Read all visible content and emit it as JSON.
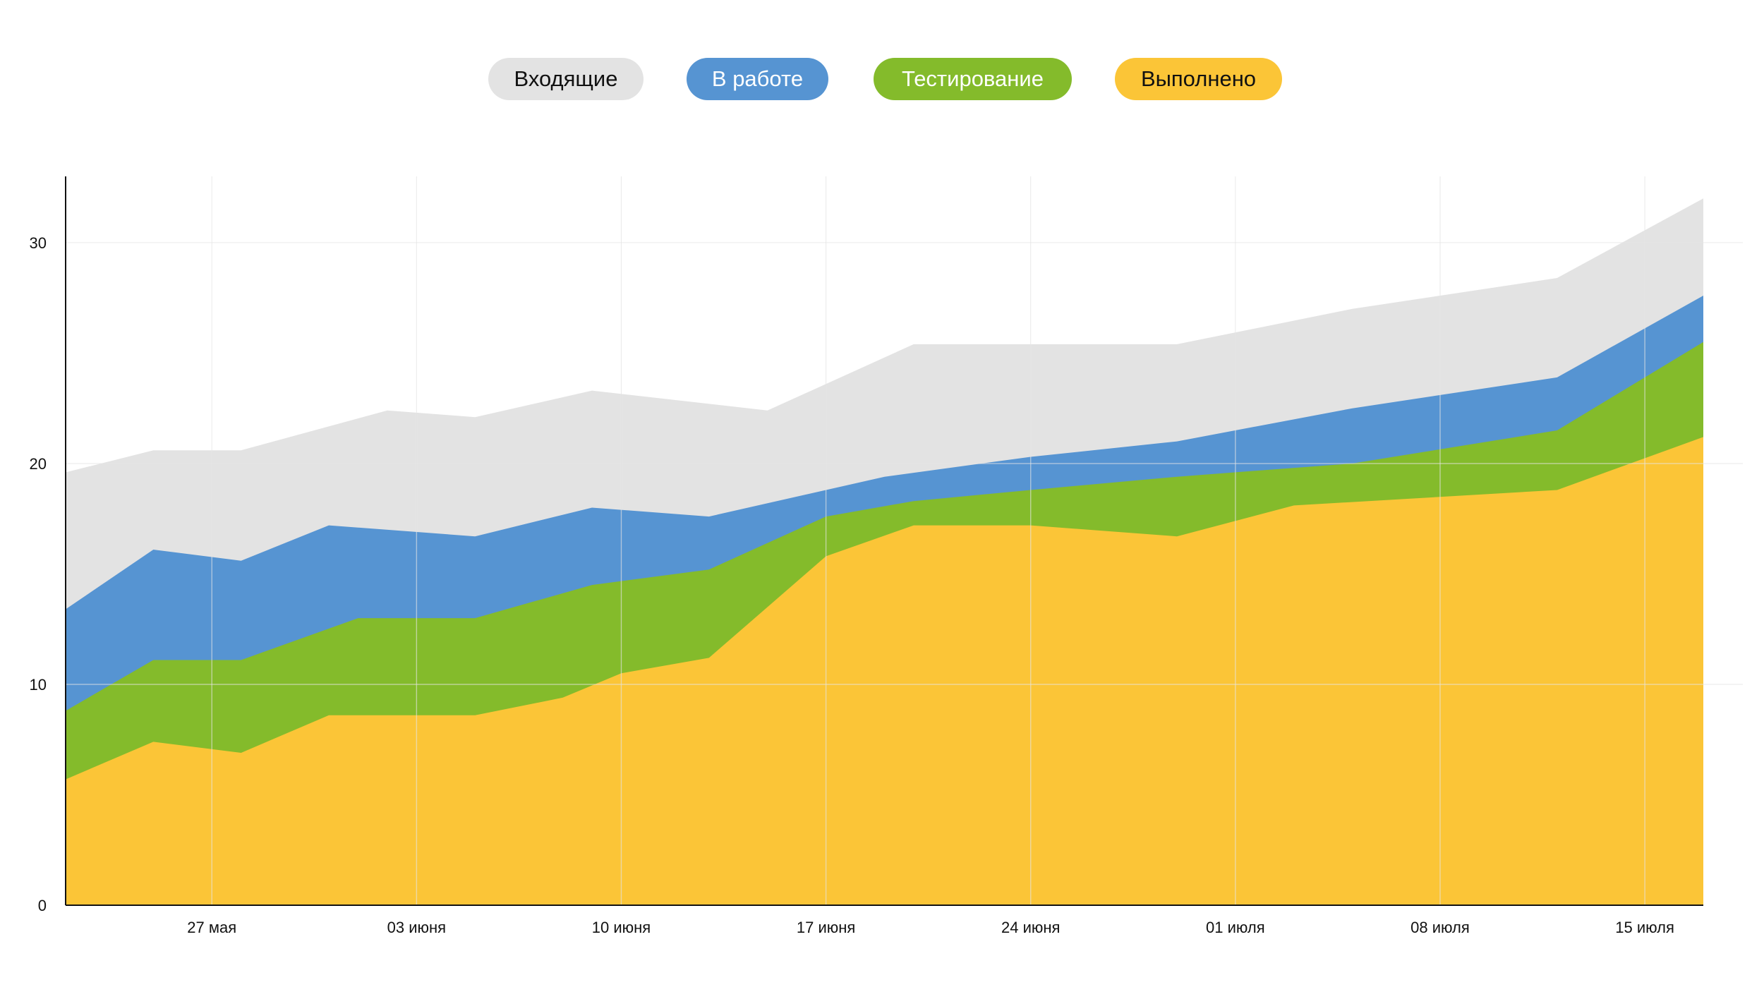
{
  "legend": [
    {
      "label": "Входящие",
      "bg": "#e3e3e3",
      "color": "#111111"
    },
    {
      "label": "В работе",
      "bg": "#5694d2",
      "color": "#ffffff"
    },
    {
      "label": "Тестирование",
      "bg": "#84bb2b",
      "color": "#ffffff"
    },
    {
      "label": "Выполнено",
      "bg": "#fbc537",
      "color": "#111111"
    }
  ],
  "chart_data": {
    "type": "area",
    "stacked": false,
    "title": "",
    "xlabel": "",
    "ylabel": "",
    "ylim": [
      0,
      33
    ],
    "yticks": [
      0,
      10,
      20,
      30
    ],
    "x_range": [
      "2024-05-22",
      "2024-07-17"
    ],
    "x_ticks": [
      {
        "date": "2024-05-27",
        "label": "27 мая"
      },
      {
        "date": "2024-06-03",
        "label": "03 июня"
      },
      {
        "date": "2024-06-10",
        "label": "10 июня"
      },
      {
        "date": "2024-06-17",
        "label": "17 июня"
      },
      {
        "date": "2024-06-24",
        "label": "24 июня"
      },
      {
        "date": "2024-07-01",
        "label": "01 июля"
      },
      {
        "date": "2024-07-08",
        "label": "08 июля"
      },
      {
        "date": "2024-07-15",
        "label": "15 июля"
      }
    ],
    "grid": true,
    "legend_position": "top-center",
    "series": [
      {
        "name": "Входящие",
        "color": "#e3e3e3",
        "points": [
          [
            "2024-05-22",
            19.6
          ],
          [
            "2024-05-25",
            20.6
          ],
          [
            "2024-05-28",
            20.6
          ],
          [
            "2024-06-02",
            22.4
          ],
          [
            "2024-06-05",
            22.1
          ],
          [
            "2024-06-09",
            23.3
          ],
          [
            "2024-06-15",
            22.4
          ],
          [
            "2024-06-20",
            25.4
          ],
          [
            "2024-06-29",
            25.4
          ],
          [
            "2024-07-05",
            27.0
          ],
          [
            "2024-07-12",
            28.4
          ],
          [
            "2024-07-17",
            32.0
          ]
        ]
      },
      {
        "name": "В работе",
        "color": "#5694d2",
        "points": [
          [
            "2024-05-22",
            13.4
          ],
          [
            "2024-05-25",
            16.1
          ],
          [
            "2024-05-28",
            15.6
          ],
          [
            "2024-05-31",
            17.2
          ],
          [
            "2024-06-05",
            16.7
          ],
          [
            "2024-06-09",
            18.0
          ],
          [
            "2024-06-13",
            17.6
          ],
          [
            "2024-06-17",
            18.8
          ],
          [
            "2024-06-19",
            19.4
          ],
          [
            "2024-06-24",
            20.3
          ],
          [
            "2024-06-29",
            21.0
          ],
          [
            "2024-07-05",
            22.5
          ],
          [
            "2024-07-12",
            23.9
          ],
          [
            "2024-07-17",
            27.6
          ]
        ]
      },
      {
        "name": "Тестирование",
        "color": "#84bb2b",
        "points": [
          [
            "2024-05-22",
            8.8
          ],
          [
            "2024-05-25",
            11.1
          ],
          [
            "2024-05-28",
            11.1
          ],
          [
            "2024-06-01",
            13.0
          ],
          [
            "2024-06-05",
            13.0
          ],
          [
            "2024-06-09",
            14.5
          ],
          [
            "2024-06-13",
            15.2
          ],
          [
            "2024-06-17",
            17.6
          ],
          [
            "2024-06-20",
            18.3
          ],
          [
            "2024-06-24",
            18.8
          ],
          [
            "2024-06-29",
            19.4
          ],
          [
            "2024-07-05",
            20.0
          ],
          [
            "2024-07-12",
            21.5
          ],
          [
            "2024-07-17",
            25.5
          ]
        ]
      },
      {
        "name": "Выполнено",
        "color": "#fbc537",
        "points": [
          [
            "2024-05-22",
            5.7
          ],
          [
            "2024-05-25",
            7.4
          ],
          [
            "2024-05-28",
            6.9
          ],
          [
            "2024-05-31",
            8.6
          ],
          [
            "2024-06-05",
            8.6
          ],
          [
            "2024-06-08",
            9.4
          ],
          [
            "2024-06-10",
            10.5
          ],
          [
            "2024-06-13",
            11.2
          ],
          [
            "2024-06-17",
            15.8
          ],
          [
            "2024-06-20",
            17.2
          ],
          [
            "2024-06-24",
            17.2
          ],
          [
            "2024-06-29",
            16.7
          ],
          [
            "2024-07-03",
            18.1
          ],
          [
            "2024-07-12",
            18.8
          ],
          [
            "2024-07-17",
            21.2
          ]
        ]
      }
    ]
  }
}
